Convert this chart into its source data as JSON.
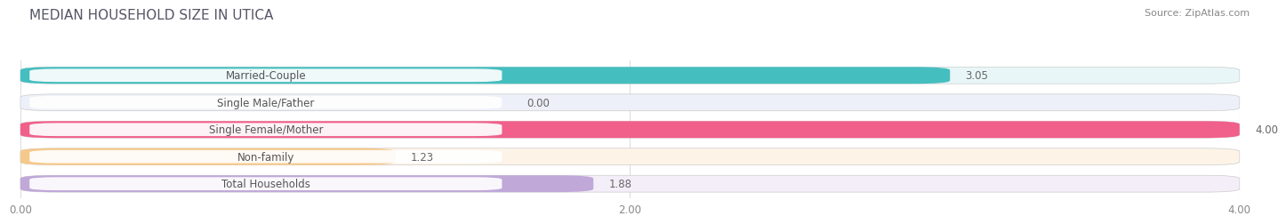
{
  "title": "MEDIAN HOUSEHOLD SIZE IN UTICA",
  "source": "Source: ZipAtlas.com",
  "categories": [
    "Married-Couple",
    "Single Male/Father",
    "Single Female/Mother",
    "Non-family",
    "Total Households"
  ],
  "values": [
    3.05,
    0.0,
    4.0,
    1.23,
    1.88
  ],
  "bar_colors": [
    "#45bec0",
    "#9db8e8",
    "#f0608a",
    "#f5c98a",
    "#c0a8d8"
  ],
  "bar_bg_colors": [
    "#e8f6f7",
    "#edf0f8",
    "#fde8ef",
    "#fdf3e7",
    "#f3eef8"
  ],
  "label_pill_color": "#ffffff",
  "label_text_color": "#555555",
  "xlim": [
    0,
    4.0
  ],
  "xticks": [
    0.0,
    2.0,
    4.0
  ],
  "xtick_labels": [
    "0.00",
    "2.00",
    "4.00"
  ],
  "label_fontsize": 8.5,
  "title_fontsize": 11,
  "value_fontsize": 8.5,
  "background_color": "#ffffff",
  "grid_color": "#dddddd"
}
